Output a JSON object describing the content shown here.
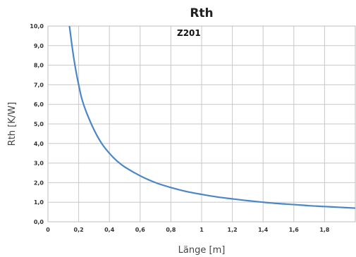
{
  "chart_data": {
    "type": "line",
    "title": "Rth",
    "annotation": "Z201",
    "xlabel": "Länge [m]",
    "ylabel": "Rth [K/W]",
    "xlim": [
      0,
      2.0
    ],
    "ylim": [
      0,
      10
    ],
    "x_ticks": [
      "0",
      "0,2",
      "0,4",
      "0,6",
      "0,8",
      "1",
      "1,2",
      "1,4",
      "1,6",
      "1,8"
    ],
    "y_ticks": [
      "0,0",
      "1,0",
      "2,0",
      "3,0",
      "4,0",
      "5,0",
      "6,0",
      "7,0",
      "8,0",
      "9,0",
      "10,0"
    ],
    "grid": true,
    "legend": "none",
    "line_color": "#4a86c8",
    "series": [
      {
        "x": [
          0.14,
          0.16,
          0.18,
          0.2,
          0.22,
          0.25,
          0.3,
          0.35,
          0.4,
          0.45,
          0.5,
          0.6,
          0.7,
          0.8,
          0.9,
          1.0,
          1.1,
          1.2,
          1.3,
          1.4,
          1.5,
          1.6,
          1.7,
          1.8,
          1.9,
          2.0
        ],
        "y": [
          10.0,
          8.8,
          7.8,
          7.0,
          6.3,
          5.6,
          4.7,
          4.0,
          3.5,
          3.1,
          2.8,
          2.35,
          2.0,
          1.75,
          1.55,
          1.4,
          1.27,
          1.17,
          1.08,
          1.0,
          0.93,
          0.88,
          0.82,
          0.78,
          0.74,
          0.7
        ]
      }
    ]
  }
}
